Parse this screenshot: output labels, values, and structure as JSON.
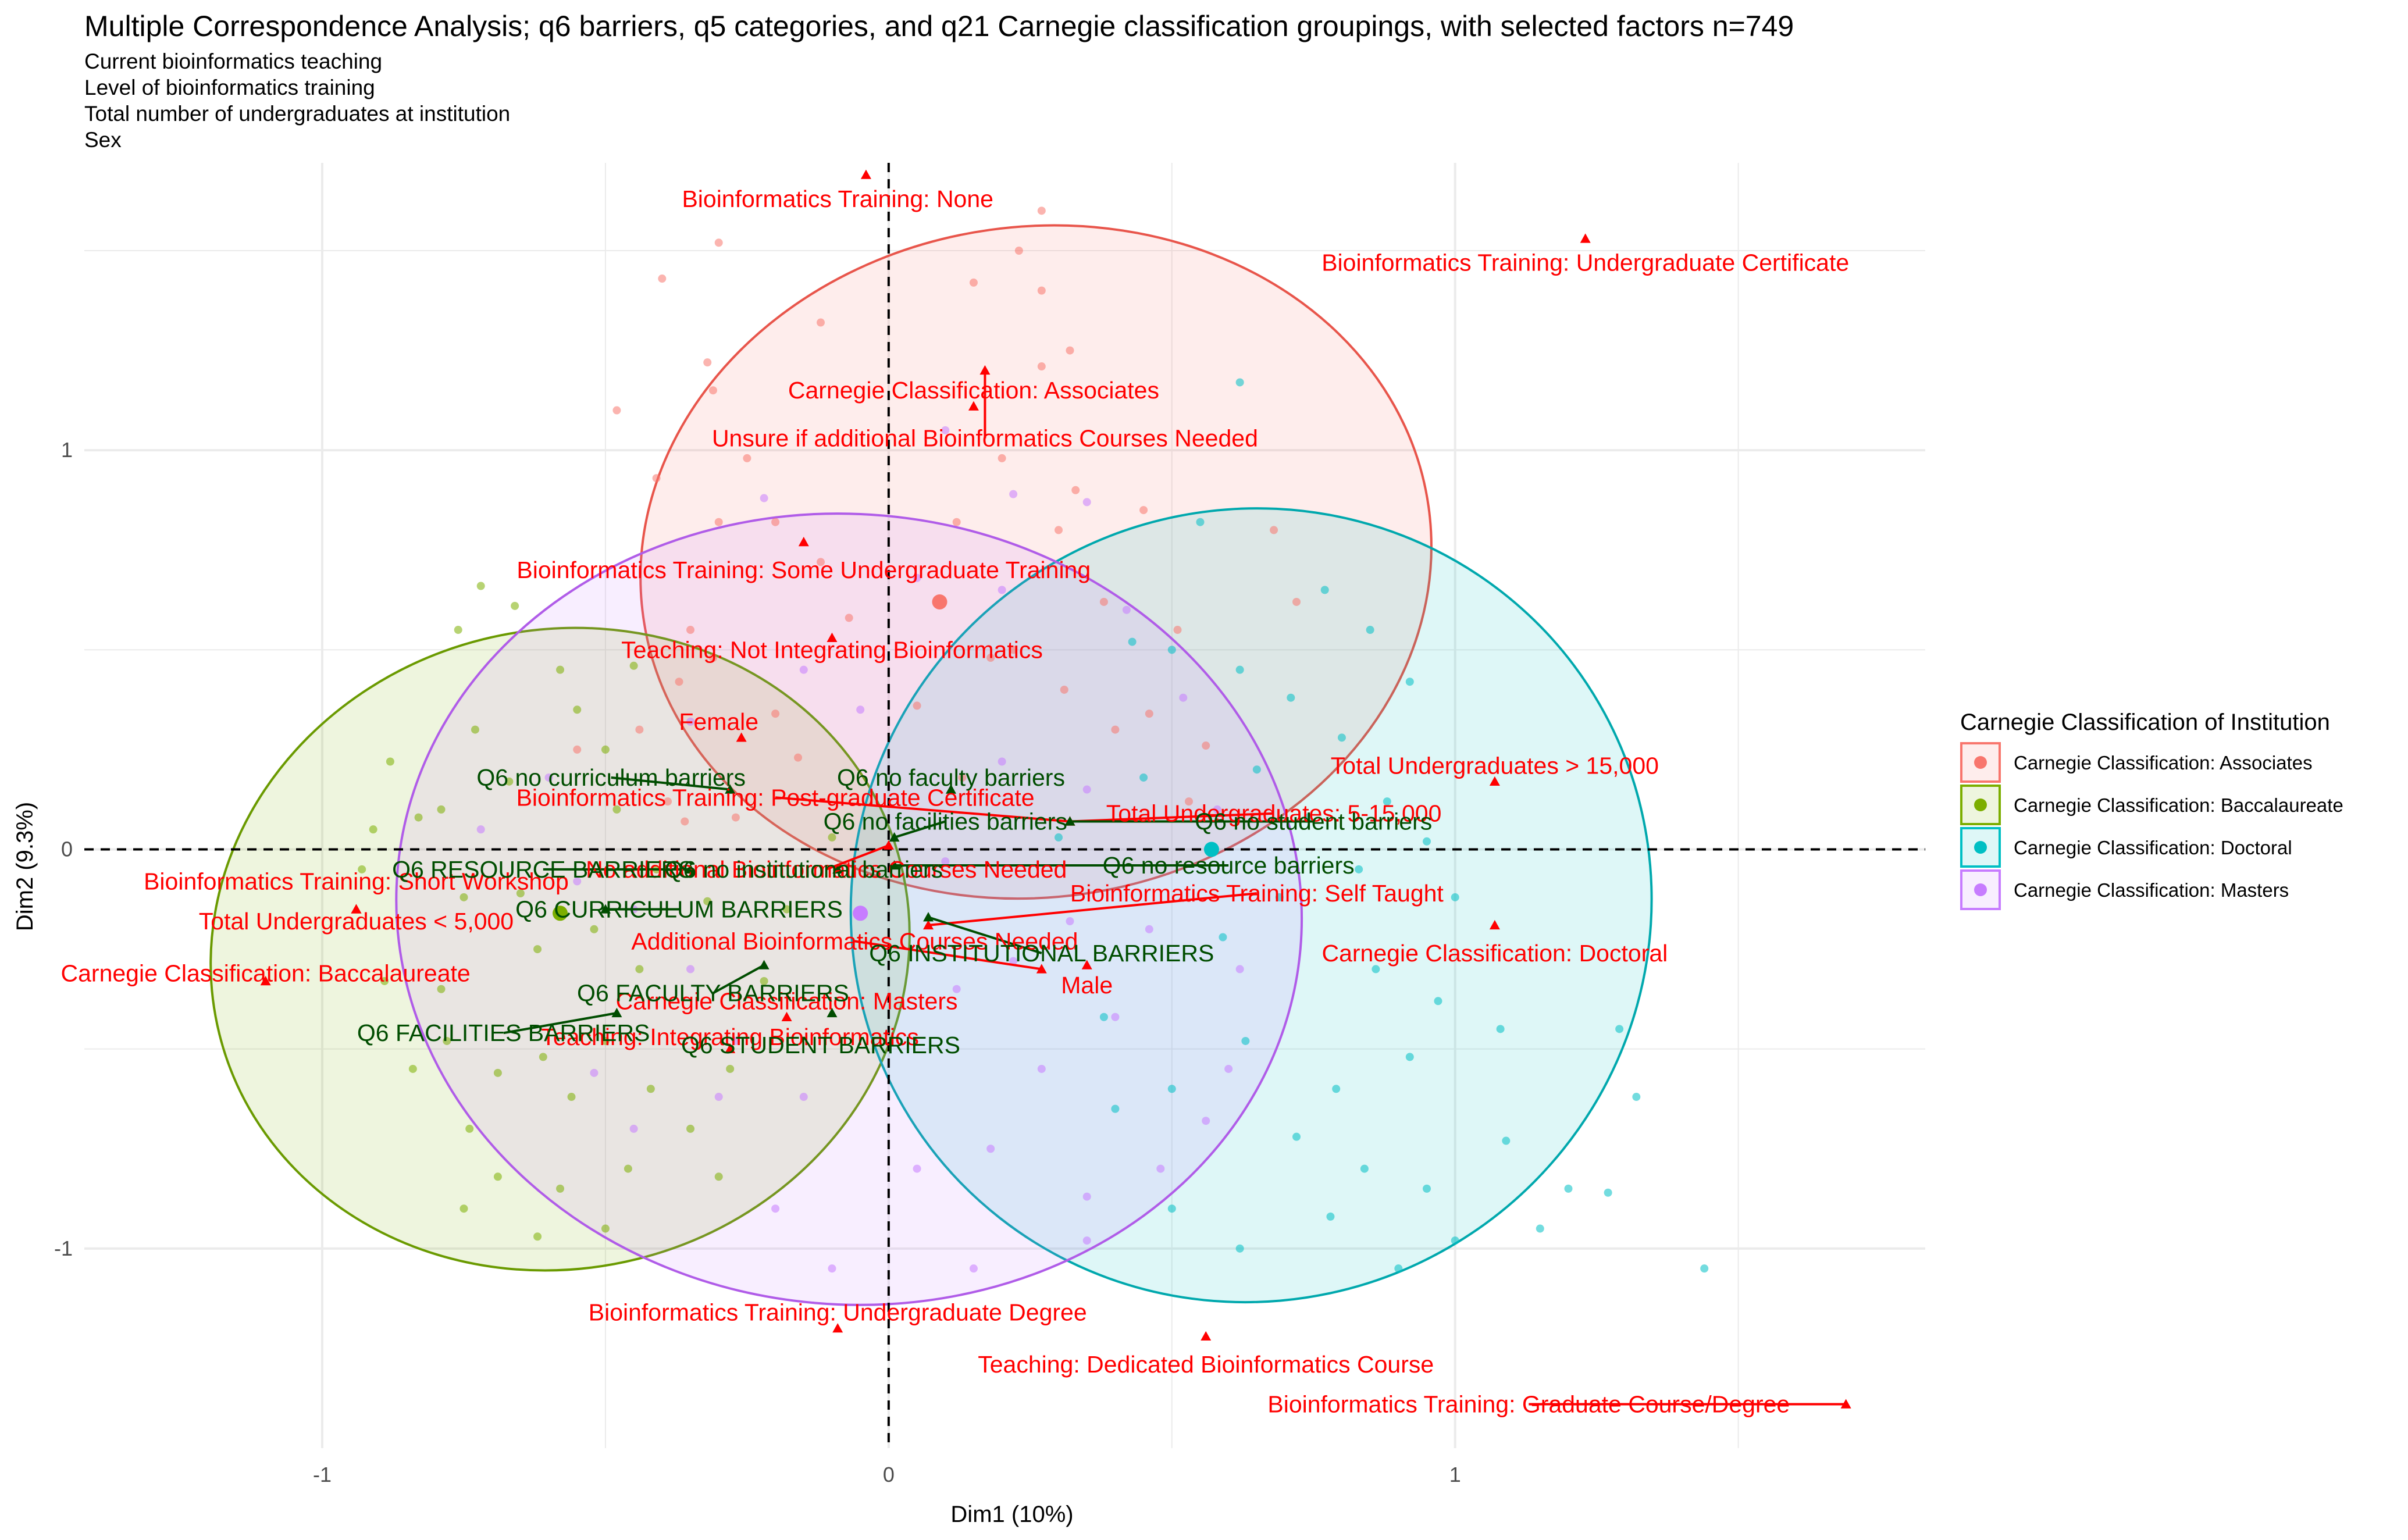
{
  "chart_data": {
    "type": "scatter",
    "title": "Multiple Correspondence Analysis; q6 barriers, q5 categories, and q21 Carnegie classification groupings, with selected factors n=749",
    "subtitle_lines": [
      "Current bioinformatics teaching",
      "Level of bioinformatics training",
      "Total number of undergraduates at institution",
      "Sex"
    ],
    "xlabel": "Dim1 (10%)",
    "ylabel": "Dim2 (9.3%)",
    "xlim": [
      -1.42,
      1.83
    ],
    "ylim": [
      -1.5,
      1.72
    ],
    "x_ticks": [
      -1,
      0,
      1
    ],
    "y_ticks": [
      -1,
      0,
      1
    ],
    "grid": true,
    "reference_lines": {
      "x": 0,
      "y": 0,
      "style": "dashed"
    },
    "legend": {
      "title": "Carnegie Classification of Institution",
      "position": "right",
      "entries": [
        {
          "name": "Carnegie Classification: Associates",
          "color": "#f8766d"
        },
        {
          "name": "Carnegie Classification: Baccalaureate",
          "color": "#7cae00"
        },
        {
          "name": "Carnegie Classification: Doctoral",
          "color": "#00bfc4"
        },
        {
          "name": "Carnegie Classification: Masters",
          "color": "#c77cff"
        }
      ]
    },
    "groups": [
      {
        "name": "Carnegie Classification: Associates",
        "fill": "#f8766d",
        "stroke": "#e8554b",
        "ellipse": {
          "cx": 0.26,
          "cy": 0.72,
          "rx": 0.7,
          "ry": 0.84,
          "angle": -8
        },
        "mean": [
          0.09,
          0.62
        ],
        "points": [
          [
            -0.3,
            1.52
          ],
          [
            -0.4,
            1.43
          ],
          [
            -0.12,
            1.32
          ],
          [
            -0.32,
            1.22
          ],
          [
            0.27,
            1.6
          ],
          [
            0.15,
            1.42
          ],
          [
            0.23,
            1.5
          ],
          [
            0.27,
            1.4
          ],
          [
            0.32,
            1.25
          ],
          [
            0.27,
            1.21
          ],
          [
            -0.31,
            1.15
          ],
          [
            -0.48,
            1.1
          ],
          [
            -0.25,
            0.98
          ],
          [
            -0.41,
            0.93
          ],
          [
            -0.3,
            0.82
          ],
          [
            0.2,
            0.98
          ],
          [
            0.33,
            0.9
          ],
          [
            0.45,
            0.85
          ],
          [
            0.3,
            0.8
          ],
          [
            0.38,
            0.62
          ],
          [
            0.51,
            0.55
          ],
          [
            -0.12,
            0.72
          ],
          [
            -0.35,
            0.55
          ],
          [
            -0.37,
            0.42
          ],
          [
            -0.31,
            0.48
          ],
          [
            -0.2,
            0.34
          ],
          [
            -0.44,
            0.3
          ],
          [
            -0.55,
            0.25
          ],
          [
            -0.39,
            0.12
          ],
          [
            -0.16,
            0.23
          ],
          [
            -0.36,
            0.07
          ],
          [
            -0.27,
            0.08
          ],
          [
            0.18,
            0.48
          ],
          [
            0.31,
            0.4
          ],
          [
            0.46,
            0.34
          ],
          [
            0.56,
            0.26
          ],
          [
            0.53,
            0.12
          ],
          [
            0.4,
            0.3
          ],
          [
            0.13,
            0.18
          ],
          [
            0.22,
            0.5
          ],
          [
            -0.2,
            0.82
          ],
          [
            0.05,
            0.36
          ],
          [
            -0.07,
            0.58
          ],
          [
            0.68,
            0.8
          ],
          [
            0.72,
            0.62
          ],
          [
            0.12,
            0.82
          ]
        ]
      },
      {
        "name": "Carnegie Classification: Baccalaureate",
        "fill": "#7cae00",
        "stroke": "#6a9a00",
        "ellipse": {
          "cx": -0.58,
          "cy": -0.25,
          "rx": 0.62,
          "ry": 0.8,
          "angle": -14
        },
        "mean": [
          -0.58,
          -0.16
        ],
        "points": [
          [
            -0.76,
            0.55
          ],
          [
            -0.72,
            0.66
          ],
          [
            -0.66,
            0.61
          ],
          [
            -0.58,
            0.45
          ],
          [
            -0.45,
            0.46
          ],
          [
            -0.5,
            0.25
          ],
          [
            -0.73,
            0.3
          ],
          [
            -0.67,
            0.17
          ],
          [
            -0.83,
            0.08
          ],
          [
            -0.91,
            0.05
          ],
          [
            -0.93,
            -0.05
          ],
          [
            -0.79,
            0.1
          ],
          [
            -0.75,
            -0.12
          ],
          [
            -0.65,
            -0.11
          ],
          [
            -0.62,
            -0.25
          ],
          [
            -0.52,
            -0.2
          ],
          [
            -0.44,
            -0.3
          ],
          [
            -0.79,
            -0.35
          ],
          [
            -0.89,
            -0.33
          ],
          [
            -0.84,
            -0.55
          ],
          [
            -0.78,
            -0.48
          ],
          [
            -0.69,
            -0.56
          ],
          [
            -0.61,
            -0.52
          ],
          [
            -0.5,
            -0.48
          ],
          [
            -0.42,
            -0.6
          ],
          [
            -0.35,
            -0.7
          ],
          [
            -0.46,
            -0.8
          ],
          [
            -0.58,
            -0.85
          ],
          [
            -0.69,
            -0.82
          ],
          [
            -0.75,
            -0.9
          ],
          [
            -0.62,
            -0.97
          ],
          [
            -0.5,
            -0.95
          ],
          [
            -0.3,
            -0.82
          ],
          [
            -0.28,
            -0.55
          ],
          [
            -0.22,
            -0.33
          ],
          [
            -0.18,
            -0.15
          ],
          [
            -0.1,
            0.03
          ],
          [
            -0.48,
            0.1
          ],
          [
            -0.41,
            -0.05
          ],
          [
            -0.32,
            -0.13
          ],
          [
            -0.55,
            0.35
          ],
          [
            -0.88,
            0.22
          ],
          [
            -0.74,
            -0.7
          ],
          [
            -0.56,
            -0.62
          ]
        ]
      },
      {
        "name": "Carnegie Classification: Doctoral",
        "fill": "#00bfc4",
        "stroke": "#00a8ad",
        "ellipse": {
          "cx": 0.64,
          "cy": -0.14,
          "rx": 0.71,
          "ry": 0.99,
          "angle": -30
        },
        "mean": [
          0.57,
          0.0
        ],
        "points": [
          [
            0.62,
            1.17
          ],
          [
            0.55,
            0.82
          ],
          [
            0.77,
            0.65
          ],
          [
            0.85,
            0.55
          ],
          [
            0.92,
            0.42
          ],
          [
            0.62,
            0.45
          ],
          [
            0.5,
            0.5
          ],
          [
            0.8,
            0.28
          ],
          [
            0.71,
            0.38
          ],
          [
            0.45,
            0.18
          ],
          [
            0.65,
            0.2
          ],
          [
            0.74,
            0.08
          ],
          [
            0.88,
            0.12
          ],
          [
            0.95,
            0.02
          ],
          [
            0.83,
            -0.05
          ],
          [
            0.69,
            -0.12
          ],
          [
            0.59,
            -0.22
          ],
          [
            0.86,
            -0.3
          ],
          [
            0.97,
            -0.38
          ],
          [
            1.08,
            -0.45
          ],
          [
            0.92,
            -0.52
          ],
          [
            0.79,
            -0.6
          ],
          [
            0.72,
            -0.72
          ],
          [
            0.84,
            -0.8
          ],
          [
            0.95,
            -0.85
          ],
          [
            1.09,
            -0.73
          ],
          [
            1.2,
            -0.85
          ],
          [
            1.27,
            -0.86
          ],
          [
            1.15,
            -0.95
          ],
          [
            0.9,
            -1.05
          ],
          [
            1.0,
            -0.98
          ],
          [
            0.78,
            -0.92
          ],
          [
            1.44,
            -1.05
          ],
          [
            1.32,
            -0.62
          ],
          [
            1.29,
            -0.45
          ],
          [
            0.63,
            -0.48
          ],
          [
            0.5,
            -0.6
          ],
          [
            0.4,
            -0.65
          ],
          [
            0.5,
            -0.9
          ],
          [
            0.62,
            -1.0
          ],
          [
            0.38,
            -0.42
          ],
          [
            1.0,
            -0.12
          ],
          [
            0.3,
            0.03
          ],
          [
            0.43,
            0.52
          ]
        ]
      },
      {
        "name": "Carnegie Classification: Masters",
        "fill": "#c77cff",
        "stroke": "#b05ce8",
        "ellipse": {
          "cx": -0.07,
          "cy": -0.15,
          "rx": 0.8,
          "ry": 0.99,
          "angle": 5
        },
        "mean": [
          -0.05,
          -0.16
        ],
        "points": [
          [
            0.1,
            1.05
          ],
          [
            0.22,
            0.89
          ],
          [
            0.35,
            0.87
          ],
          [
            0.42,
            0.6
          ],
          [
            0.05,
            0.68
          ],
          [
            0.2,
            0.65
          ],
          [
            -0.22,
            0.88
          ],
          [
            -0.15,
            0.45
          ],
          [
            -0.35,
            0.32
          ],
          [
            -0.6,
            0.18
          ],
          [
            -0.72,
            0.05
          ],
          [
            -0.55,
            -0.08
          ],
          [
            -0.45,
            -0.15
          ],
          [
            -0.35,
            -0.3
          ],
          [
            -0.27,
            -0.48
          ],
          [
            -0.3,
            -0.62
          ],
          [
            -0.45,
            -0.7
          ],
          [
            -0.52,
            -0.56
          ],
          [
            -0.15,
            -0.62
          ],
          [
            0.05,
            -0.8
          ],
          [
            0.18,
            -0.75
          ],
          [
            0.35,
            -0.87
          ],
          [
            0.48,
            -0.8
          ],
          [
            0.27,
            -0.55
          ],
          [
            0.4,
            -0.42
          ],
          [
            0.12,
            -0.35
          ],
          [
            0.22,
            -0.28
          ],
          [
            0.32,
            -0.18
          ],
          [
            0.1,
            -0.03
          ],
          [
            0.2,
            0.22
          ],
          [
            0.35,
            0.15
          ],
          [
            0.52,
            0.38
          ],
          [
            0.58,
            0.1
          ],
          [
            0.62,
            -0.3
          ],
          [
            0.6,
            -0.55
          ],
          [
            0.35,
            -0.98
          ],
          [
            0.15,
            -1.05
          ],
          [
            -0.1,
            -1.05
          ],
          [
            -0.2,
            -0.9
          ],
          [
            0.56,
            -0.68
          ],
          [
            0.46,
            -0.2
          ],
          [
            -0.05,
            0.35
          ]
        ]
      }
    ],
    "supplementary_points": [
      {
        "label": "Bioinformatics Training: None",
        "x": -0.04,
        "y": 1.69,
        "lx": -0.09,
        "ly": 1.63,
        "kind": "category"
      },
      {
        "label": "Bioinformatics Training: Undergraduate Certificate",
        "x": 1.23,
        "y": 1.53,
        "lx": 1.23,
        "ly": 1.47,
        "kind": "category"
      },
      {
        "label": "Carnegie Classification: Associates",
        "x": 0.15,
        "y": 1.11,
        "lx": 0.15,
        "ly": 1.15,
        "kind": "category"
      },
      {
        "label": "Unsure if additional Bioinformatics Courses Needed",
        "x": 0.17,
        "y": 1.2,
        "lx": 0.17,
        "ly": 1.03,
        "kind": "category"
      },
      {
        "label": "Bioinformatics Training: Some Undergraduate Training",
        "x": -0.15,
        "y": 0.77,
        "lx": -0.15,
        "ly": 0.7,
        "kind": "category"
      },
      {
        "label": "Teaching: Not Integrating Bioinformatics",
        "x": -0.1,
        "y": 0.53,
        "lx": -0.1,
        "ly": 0.5,
        "kind": "category"
      },
      {
        "label": "Female",
        "x": -0.26,
        "y": 0.28,
        "lx": -0.3,
        "ly": 0.32,
        "kind": "category"
      },
      {
        "label": "Total Undergraduates > 15,000",
        "x": 1.07,
        "y": 0.17,
        "lx": 1.07,
        "ly": 0.21,
        "kind": "category"
      },
      {
        "label": "Bioinformatics Training: Post-graduate Certificate",
        "x": 0.32,
        "y": 0.07,
        "lx": -0.2,
        "ly": 0.13,
        "kind": "category"
      },
      {
        "label": "Total Undergraduates: 5-15,000",
        "x": 0.32,
        "y": 0.07,
        "lx": 0.68,
        "ly": 0.09,
        "kind": "category"
      },
      {
        "label": "No additional Bioinformatics Courses Needed",
        "x": 0.0,
        "y": 0.01,
        "lx": -0.11,
        "ly": -0.05,
        "kind": "category"
      },
      {
        "label": "Bioinformatics Training: Short Workshop",
        "x": -0.94,
        "y": -0.15,
        "lx": -0.94,
        "ly": -0.08,
        "kind": "category"
      },
      {
        "label": "Total Undergraduates < 5,000",
        "x": -0.94,
        "y": -0.15,
        "lx": -0.94,
        "ly": -0.18,
        "kind": "category"
      },
      {
        "label": "Bioinformatics Training: Self Taught",
        "x": 0.07,
        "y": -0.19,
        "lx": 0.65,
        "ly": -0.11,
        "kind": "category"
      },
      {
        "label": "Carnegie Classification: Doctoral",
        "x": 1.07,
        "y": -0.19,
        "lx": 1.07,
        "ly": -0.26,
        "kind": "category"
      },
      {
        "label": "Additional Bioinformatics Courses Needed",
        "x": 0.27,
        "y": -0.3,
        "lx": -0.06,
        "ly": -0.23,
        "kind": "category"
      },
      {
        "label": "Male",
        "x": 0.35,
        "y": -0.29,
        "lx": 0.35,
        "ly": -0.34,
        "kind": "category"
      },
      {
        "label": "Carnegie Classification: Baccalaureate",
        "x": -1.1,
        "y": -0.33,
        "lx": -1.1,
        "ly": -0.31,
        "kind": "category"
      },
      {
        "label": "Carnegie Classification: Masters",
        "x": -0.18,
        "y": -0.42,
        "lx": -0.18,
        "ly": -0.38,
        "kind": "category"
      },
      {
        "label": "Teaching: Integrating Bioinformatics",
        "x": -0.28,
        "y": -0.5,
        "lx": -0.28,
        "ly": -0.47,
        "kind": "category"
      },
      {
        "label": "Bioinformatics Training: Undergraduate Degree",
        "x": -0.09,
        "y": -1.2,
        "lx": -0.09,
        "ly": -1.16,
        "kind": "category"
      },
      {
        "label": "Teaching: Dedicated Bioinformatics Course",
        "x": 0.56,
        "y": -1.22,
        "lx": 0.56,
        "ly": -1.29,
        "kind": "category"
      },
      {
        "label": "Bioinformatics Training: Graduate Course/Degree",
        "x": 1.69,
        "y": -1.39,
        "lx": 1.13,
        "ly": -1.39,
        "kind": "category"
      },
      {
        "label": "Q6 no curriculum barriers",
        "x": -0.28,
        "y": 0.15,
        "lx": -0.49,
        "ly": 0.18,
        "kind": "barrier"
      },
      {
        "label": "Q6 no faculty barriers",
        "x": 0.11,
        "y": 0.15,
        "lx": 0.11,
        "ly": 0.18,
        "kind": "barrier"
      },
      {
        "label": "Q6 no facilities barriers",
        "x": 0.01,
        "y": 0.03,
        "lx": 0.1,
        "ly": 0.07,
        "kind": "barrier"
      },
      {
        "label": "Q6 no student barriers",
        "x": 0.32,
        "y": 0.07,
        "lx": 0.75,
        "ly": 0.07,
        "kind": "barrier"
      },
      {
        "label": "Q6 no resource barriers",
        "x": 0.01,
        "y": -0.04,
        "lx": 0.6,
        "ly": -0.04,
        "kind": "barrier"
      },
      {
        "label": "Q6 RESOURCE BARRIERS",
        "x": -0.35,
        "y": -0.05,
        "lx": -0.61,
        "ly": -0.05,
        "kind": "barrier"
      },
      {
        "label": "Q6 no institutional barriers",
        "x": -0.09,
        "y": -0.05,
        "lx": -0.15,
        "ly": -0.05,
        "kind": "barrier"
      },
      {
        "label": "Q6 CURRICULUM BARRIERS",
        "x": -0.5,
        "y": -0.15,
        "lx": -0.37,
        "ly": -0.15,
        "kind": "barrier"
      },
      {
        "label": "Q6 INSTITUTIONAL BARRIERS",
        "x": 0.07,
        "y": -0.17,
        "lx": 0.27,
        "ly": -0.26,
        "kind": "barrier"
      },
      {
        "label": "Q6 FACULTY BARRIERS",
        "x": -0.22,
        "y": -0.29,
        "lx": -0.31,
        "ly": -0.36,
        "kind": "barrier"
      },
      {
        "label": "Q6 FACILITIES BARRIERS",
        "x": -0.48,
        "y": -0.41,
        "lx": -0.68,
        "ly": -0.46,
        "kind": "barrier"
      },
      {
        "label": "Q6 STUDENT BARRIERS",
        "x": -0.1,
        "y": -0.41,
        "lx": -0.12,
        "ly": -0.49,
        "kind": "barrier"
      }
    ],
    "colors": {
      "category_label": "#ff0000",
      "barrier_label": "#004d00",
      "axis_text": "#4d4d4d",
      "grid": "#ebebeb"
    }
  }
}
